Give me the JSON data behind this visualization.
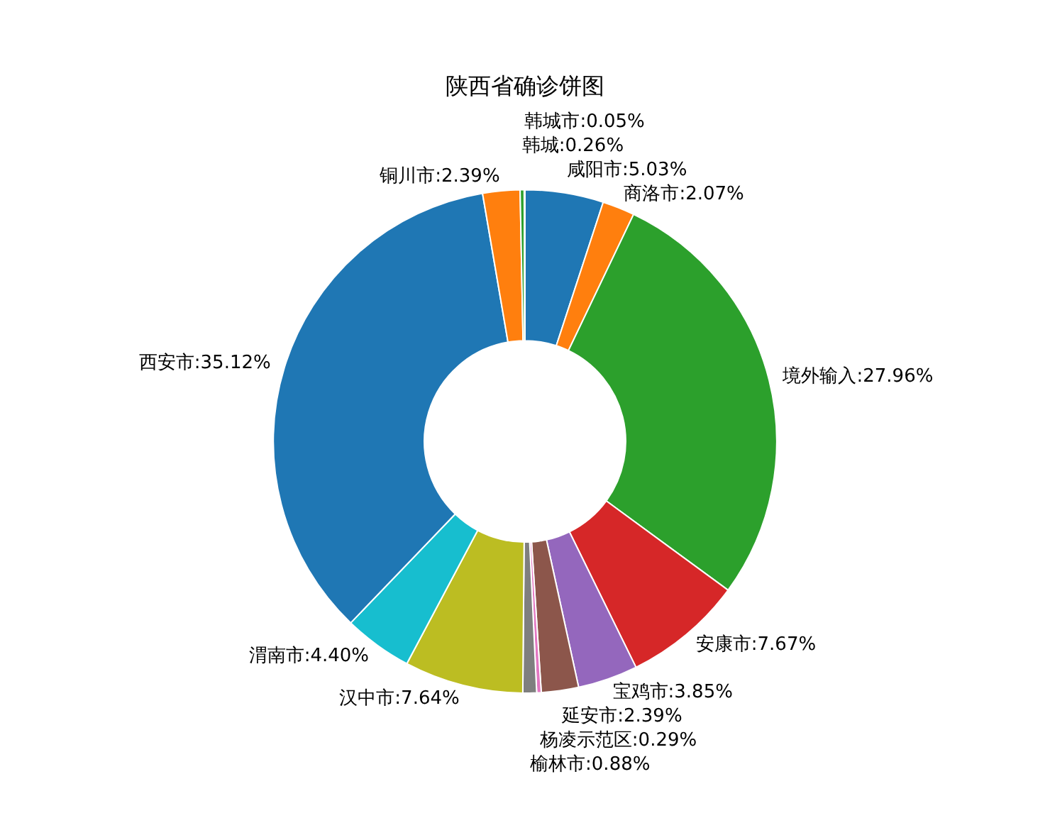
{
  "chart_data": {
    "type": "donut",
    "title": "陕西省确诊饼图",
    "categories": [
      "咸阳市",
      "商洛市",
      "境外输入",
      "安康市",
      "宝鸡市",
      "延安市",
      "杨凌示范区",
      "榆林市",
      "汉中市",
      "渭南市",
      "西安市",
      "铜川市",
      "韩城",
      "韩城市"
    ],
    "values": [
      5.03,
      2.07,
      27.96,
      7.67,
      3.85,
      2.39,
      0.29,
      0.88,
      7.64,
      4.4,
      35.12,
      2.39,
      0.26,
      0.05
    ],
    "value_labels": [
      "5.03%",
      "2.07%",
      "27.96%",
      "7.67%",
      "3.85%",
      "2.39%",
      "0.29%",
      "0.88%",
      "7.64%",
      "4.40%",
      "35.12%",
      "2.39%",
      "0.26%",
      "0.05%"
    ],
    "colors": [
      "#1f77b4",
      "#ff7f0e",
      "#2ca02c",
      "#d62728",
      "#9467bd",
      "#8c564b",
      "#e377c2",
      "#7f7f7f",
      "#bcbd22",
      "#17becf",
      "#1f77b4",
      "#ff7f0e",
      "#2ca02c",
      "#d62728"
    ],
    "legend": false
  }
}
